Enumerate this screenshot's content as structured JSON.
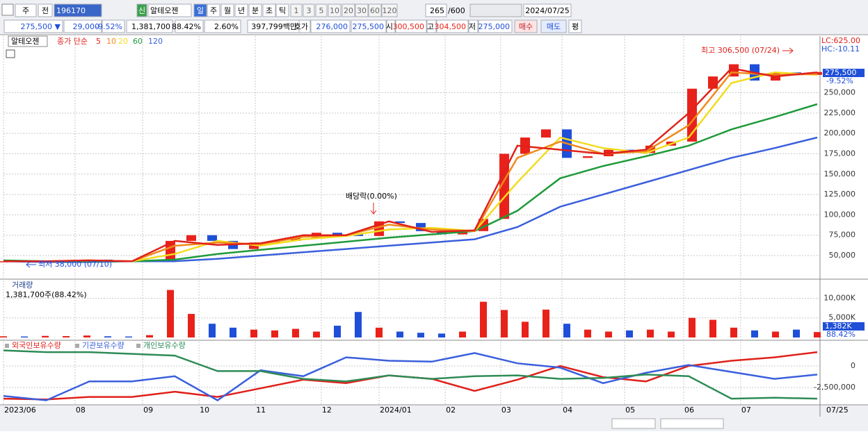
{
  "toolbar": {
    "market": "주",
    "mode": "전",
    "code": "196170",
    "badge": "신",
    "name": "알테오젠",
    "periods": [
      "일",
      "주",
      "월",
      "년",
      "분",
      "초",
      "틱"
    ],
    "intervals": [
      "1",
      "3",
      "5",
      "10",
      "20",
      "30",
      "60",
      "120"
    ],
    "count": "265",
    "max": "/600",
    "date": "2024/07/25"
  },
  "quote": {
    "price": "275,500 ▼",
    "change": "29,000",
    "change_rate": "-9.52%",
    "volume": "1,381,700",
    "volume_ratio": "88.42%",
    "turnover": "2.60%",
    "amount": "397,799백만",
    "bid_ask_label": "호가",
    "ask": "276,000",
    "bid": "275,500",
    "open_label": "시",
    "open": "300,500",
    "high_label": "고",
    "high": "304,500",
    "low_label": "저",
    "low": "275,000",
    "buy": "매수",
    "sell": "매도",
    "avg": "평"
  },
  "current_date": "07/25",
  "chart_data": [
    {
      "type": "candlestick",
      "name": "알테오젠",
      "legend_title": "종가 단순",
      "up_color": "#e8221a",
      "down_color": "#1f4fd8",
      "x": [
        0,
        1,
        2,
        3,
        4,
        5,
        6,
        7,
        8,
        9,
        10,
        11,
        12,
        13,
        14,
        15,
        16,
        17,
        18,
        19,
        20,
        21,
        22,
        23,
        24,
        25,
        26,
        27,
        28,
        29,
        30,
        31,
        32,
        33,
        34,
        35,
        36,
        37,
        38,
        39
      ],
      "close": [
        43000,
        42000,
        43000,
        43000,
        45000,
        44000,
        43000,
        44000,
        68000,
        75000,
        68000,
        58000,
        66000,
        68000,
        72000,
        78000,
        76000,
        74000,
        92000,
        90000,
        80000,
        76000,
        80000,
        95000,
        175000,
        195000,
        205000,
        170000,
        172000,
        180000,
        176000,
        185000,
        190000,
        255000,
        270000,
        285000,
        265000,
        275000,
        272000,
        275500
      ],
      "moving_averages": {
        "x": [
          0,
          2.05,
          4.11,
          6.16,
          8.21,
          10.26,
          12.32,
          14.37,
          16.42,
          18.47,
          20.53,
          22.58,
          24.63,
          26.68,
          28.74,
          30.79,
          32.84,
          34.89,
          36.95,
          39
        ],
        "series": [
          {
            "name": "5",
            "color": "#e0201a",
            "values": [
              43000,
              43000,
              44000,
              43000,
              68000,
              63000,
              65000,
              75000,
              75000,
              92000,
              79000,
              81000,
              185000,
              180000,
              175000,
              180000,
              225000,
              280000,
              270000,
              275000
            ]
          },
          {
            "name": "10",
            "color": "#f08a1c",
            "values": [
              43000,
              43000,
              44000,
              43000,
              62000,
              66000,
              64000,
              73000,
              75000,
              88000,
              82000,
              80000,
              170000,
              190000,
              175000,
              178000,
              210000,
              275000,
              272000,
              273000
            ]
          },
          {
            "name": "20",
            "color": "#f2dc1e",
            "values": [
              43000,
              43000,
              44000,
              43000,
              52000,
              68000,
              62000,
              70000,
              74000,
              82000,
              84000,
              80000,
              140000,
              195000,
              182000,
              176000,
              195000,
              262000,
              275000,
              272000
            ]
          },
          {
            "name": "60",
            "color": "#1e9a3a",
            "values": [
              44000,
              43000,
              43000,
              43000,
              45000,
              52000,
              57000,
              62000,
              67000,
              72000,
              76000,
              80000,
              105000,
              145000,
              160000,
              172000,
              185000,
              205000,
              220000,
              236000
            ]
          },
          {
            "name": "120",
            "color": "#3a5fdc",
            "values": [
              43000,
              42000,
              42000,
              43000,
              43000,
              46000,
              50000,
              54000,
              58000,
              62000,
              66000,
              70000,
              85000,
              110000,
              125000,
              140000,
              155000,
              170000,
              182000,
              195000
            ]
          }
        ]
      },
      "xlim": [
        0,
        39
      ],
      "ylim": [
        22700,
        319600
      ],
      "yticks": [
        {
          "value": 50000,
          "label": "50,000"
        },
        {
          "value": 75000,
          "label": "75,000"
        },
        {
          "value": 100000,
          "label": "100,000"
        },
        {
          "value": 125000,
          "label": "125,000"
        },
        {
          "value": 150000,
          "label": "150,000"
        },
        {
          "value": 175000,
          "label": "175,000"
        },
        {
          "value": 200000,
          "label": "200,000"
        },
        {
          "value": 225000,
          "label": "225,000"
        },
        {
          "value": 250000,
          "label": "250,000"
        }
      ],
      "last_label": "275,500",
      "last_change": "-9.52%",
      "annotations": [
        "최고 306,500 (07/24)",
        "최저 38,000 (07/10)",
        "배당락(0.00%)"
      ],
      "lc": "LC:625.00",
      "hc": "HC:-10.11"
    },
    {
      "type": "bar",
      "title": "거래량",
      "subtitle": "1,381,700주(88.42%)",
      "values": [
        300,
        250,
        400,
        350,
        500,
        300,
        250,
        600,
        12100,
        6000,
        3500,
        2500,
        2000,
        1800,
        2200,
        1500,
        3000,
        6500,
        2500,
        1500,
        1200,
        1000,
        1500,
        9100,
        7000,
        4000,
        7100,
        3500,
        2000,
        1500,
        1800,
        2000,
        1500,
        5000,
        4500,
        2500,
        1800,
        1500,
        2000,
        1382
      ],
      "xlim": [
        0,
        39
      ],
      "ylim": [
        0,
        14500
      ],
      "yticks": [
        {
          "value": 5000,
          "label": "5,000K"
        },
        {
          "value": 10000,
          "label": "10,000K"
        }
      ],
      "last_label": "1,382K",
      "last_ratio": "88.42%"
    },
    {
      "type": "line",
      "x": [
        0,
        2.05,
        4.11,
        6.16,
        8.21,
        10.26,
        12.32,
        14.37,
        16.42,
        18.47,
        20.53,
        22.58,
        24.63,
        26.68,
        28.74,
        30.79,
        32.84,
        34.89,
        36.95,
        39
      ],
      "series": [
        {
          "name": "외국인보유수량",
          "color": "#e0201a",
          "values": [
            -3800000,
            -3900000,
            -3600000,
            -3600000,
            -3000000,
            -3600000,
            -2600000,
            -1600000,
            -2000000,
            -1100000,
            -1500000,
            -2900000,
            -1600000,
            0,
            -1300000,
            -1800000,
            0,
            600000,
            1000000,
            1600000
          ]
        },
        {
          "name": "기관보유수량",
          "color": "#3a5fdc",
          "values": [
            -3500000,
            -4000000,
            -1800000,
            -1800000,
            -1200000,
            -4000000,
            -500000,
            -1200000,
            1000000,
            600000,
            500000,
            1500000,
            300000,
            -200000,
            -2000000,
            -800000,
            100000,
            -700000,
            -1500000,
            -1000000
          ]
        },
        {
          "name": "개인보유수량",
          "color": "#2e8b57",
          "values": [
            1800000,
            1600000,
            1600000,
            1400000,
            1200000,
            -600000,
            -600000,
            -1500000,
            -1800000,
            -1100000,
            -1500000,
            -1200000,
            -1100000,
            -1500000,
            -1400000,
            -1000000,
            -1200000,
            -3800000,
            -3700000,
            -3800000
          ]
        }
      ],
      "xlim": [
        0,
        39
      ],
      "ylim": [
        -4440000,
        2820000
      ],
      "yticks": [
        0,
        {
          "value": -2500000,
          "label": "-2,500,000"
        }
      ],
      "xticks": [
        {
          "value": 0,
          "label": "2023/06"
        },
        {
          "value": 3.43,
          "label": "08"
        },
        {
          "value": 6.67,
          "label": "09"
        },
        {
          "value": 9.37,
          "label": "10"
        },
        {
          "value": 12.07,
          "label": "11"
        },
        {
          "value": 15.23,
          "label": "12"
        },
        {
          "value": 18,
          "label": "2024/01"
        },
        {
          "value": 21.17,
          "label": "02"
        },
        {
          "value": 23.83,
          "label": "03"
        },
        {
          "value": 26.77,
          "label": "04"
        },
        {
          "value": 29.77,
          "label": "05"
        },
        {
          "value": 32.6,
          "label": "06"
        },
        {
          "value": 35.33,
          "label": "07"
        }
      ]
    }
  ]
}
